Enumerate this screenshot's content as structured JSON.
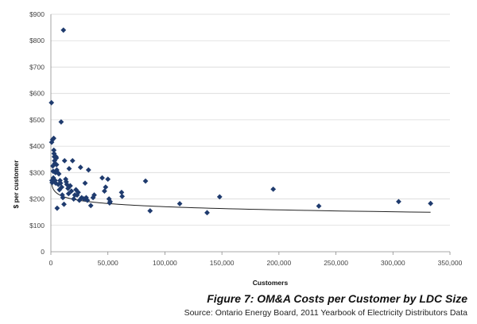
{
  "chart_data": {
    "type": "scatter",
    "title": "Figure 7: OM&A Costs per Customer by LDC Size",
    "subtitle": "Source: Ontario Energy Board, 2011 Yearbook of Electricity Distributors Data",
    "xlabel": "Customers",
    "ylabel": "$ per customer",
    "xlim": [
      0,
      350000
    ],
    "ylim": [
      0,
      900
    ],
    "x_ticks": [
      0,
      50000,
      100000,
      150000,
      200000,
      250000,
      300000,
      350000
    ],
    "x_tick_labels": [
      "0",
      "50,000",
      "100,000",
      "150,000",
      "200,000",
      "250,000",
      "300,000",
      "350,000"
    ],
    "y_ticks": [
      0,
      100,
      200,
      300,
      400,
      500,
      600,
      700,
      800,
      900
    ],
    "y_tick_labels": [
      "0",
      "$100",
      "$200",
      "$300",
      "$400",
      "$500",
      "$600",
      "$700",
      "$800",
      "$900"
    ],
    "grid": "horizontal",
    "legend": "none",
    "marker": "diamond",
    "marker_color": "#1f3b6e",
    "trendline": {
      "type": "logarithmic",
      "a": 371,
      "b": -17.4,
      "x_range": [
        500,
        333000
      ],
      "color": "#222222"
    },
    "points": [
      {
        "x": 500,
        "y": 565
      },
      {
        "x": 700,
        "y": 415
      },
      {
        "x": 900,
        "y": 270
      },
      {
        "x": 1100,
        "y": 262
      },
      {
        "x": 1500,
        "y": 425
      },
      {
        "x": 1700,
        "y": 325
      },
      {
        "x": 2000,
        "y": 305
      },
      {
        "x": 2200,
        "y": 280
      },
      {
        "x": 2500,
        "y": 430
      },
      {
        "x": 2600,
        "y": 385
      },
      {
        "x": 2800,
        "y": 372
      },
      {
        "x": 3000,
        "y": 360
      },
      {
        "x": 3200,
        "y": 345
      },
      {
        "x": 3500,
        "y": 335
      },
      {
        "x": 3700,
        "y": 270
      },
      {
        "x": 4000,
        "y": 300
      },
      {
        "x": 4200,
        "y": 260
      },
      {
        "x": 4500,
        "y": 360
      },
      {
        "x": 4800,
        "y": 355
      },
      {
        "x": 5000,
        "y": 330
      },
      {
        "x": 5200,
        "y": 310
      },
      {
        "x": 5500,
        "y": 165
      },
      {
        "x": 6000,
        "y": 300
      },
      {
        "x": 6500,
        "y": 255
      },
      {
        "x": 7000,
        "y": 295
      },
      {
        "x": 7500,
        "y": 235
      },
      {
        "x": 8000,
        "y": 270
      },
      {
        "x": 8500,
        "y": 260
      },
      {
        "x": 9000,
        "y": 492
      },
      {
        "x": 9500,
        "y": 245
      },
      {
        "x": 10000,
        "y": 215
      },
      {
        "x": 10500,
        "y": 205
      },
      {
        "x": 11000,
        "y": 840
      },
      {
        "x": 11500,
        "y": 180
      },
      {
        "x": 12000,
        "y": 345
      },
      {
        "x": 13000,
        "y": 275
      },
      {
        "x": 13500,
        "y": 265
      },
      {
        "x": 14000,
        "y": 255
      },
      {
        "x": 15000,
        "y": 240
      },
      {
        "x": 15500,
        "y": 220
      },
      {
        "x": 16000,
        "y": 315
      },
      {
        "x": 17000,
        "y": 250
      },
      {
        "x": 18000,
        "y": 230
      },
      {
        "x": 19000,
        "y": 345
      },
      {
        "x": 20000,
        "y": 200
      },
      {
        "x": 21000,
        "y": 215
      },
      {
        "x": 22000,
        "y": 235
      },
      {
        "x": 23000,
        "y": 215
      },
      {
        "x": 24000,
        "y": 225
      },
      {
        "x": 25000,
        "y": 195
      },
      {
        "x": 26000,
        "y": 320
      },
      {
        "x": 27000,
        "y": 205
      },
      {
        "x": 29000,
        "y": 200
      },
      {
        "x": 30000,
        "y": 260
      },
      {
        "x": 31000,
        "y": 205
      },
      {
        "x": 32000,
        "y": 195
      },
      {
        "x": 33000,
        "y": 310
      },
      {
        "x": 35000,
        "y": 175
      },
      {
        "x": 37000,
        "y": 205
      },
      {
        "x": 38000,
        "y": 215
      },
      {
        "x": 45000,
        "y": 280
      },
      {
        "x": 47000,
        "y": 230
      },
      {
        "x": 48000,
        "y": 245
      },
      {
        "x": 50000,
        "y": 275
      },
      {
        "x": 51000,
        "y": 200
      },
      {
        "x": 51500,
        "y": 185
      },
      {
        "x": 52000,
        "y": 190
      },
      {
        "x": 62000,
        "y": 225
      },
      {
        "x": 62500,
        "y": 210
      },
      {
        "x": 83000,
        "y": 268
      },
      {
        "x": 87000,
        "y": 155
      },
      {
        "x": 113000,
        "y": 182
      },
      {
        "x": 137000,
        "y": 148
      },
      {
        "x": 148000,
        "y": 208
      },
      {
        "x": 195000,
        "y": 237
      },
      {
        "x": 235000,
        "y": 173
      },
      {
        "x": 305000,
        "y": 190
      },
      {
        "x": 333000,
        "y": 183
      }
    ]
  }
}
